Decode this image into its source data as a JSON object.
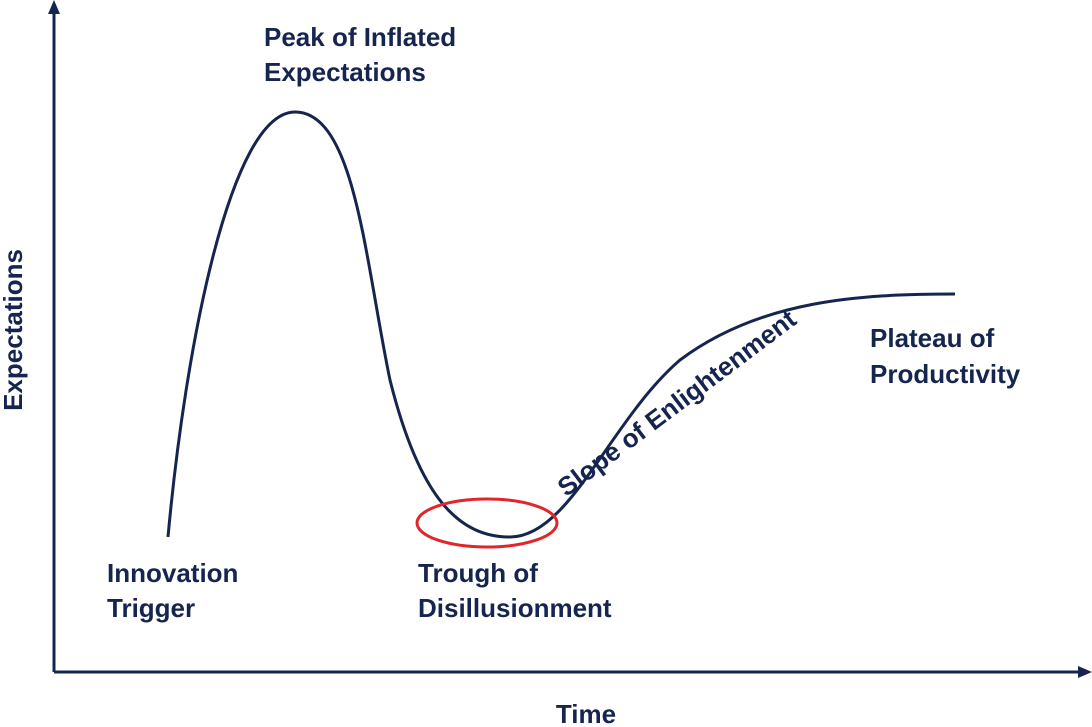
{
  "axes": {
    "y_label": "Expectations",
    "x_label": "Time"
  },
  "phases": [
    {
      "lines": [
        "Innovation",
        "Trigger"
      ]
    },
    {
      "lines": [
        "Peak of Inflated",
        "Expectations"
      ]
    },
    {
      "lines": [
        "Trough of",
        "Disillusionment"
      ]
    },
    {
      "lines": [
        "Slope of Enlightenment"
      ]
    },
    {
      "lines": [
        "Plateau of",
        "Productivity"
      ]
    }
  ]
}
